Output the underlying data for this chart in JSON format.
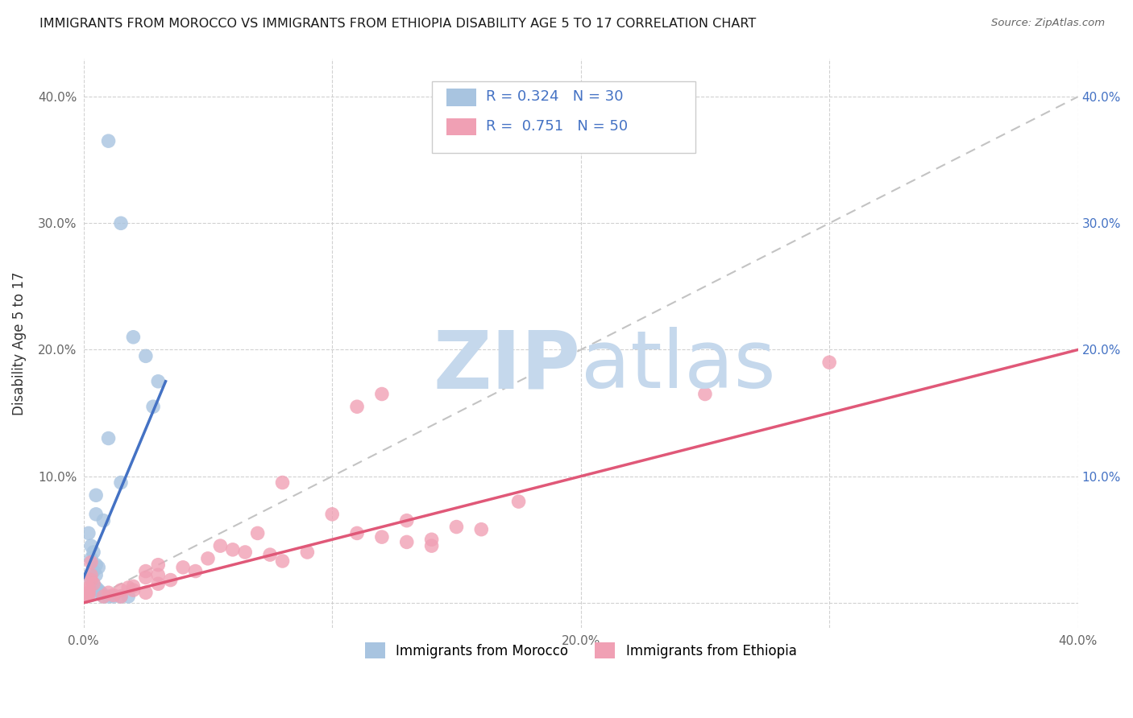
{
  "title": "IMMIGRANTS FROM MOROCCO VS IMMIGRANTS FROM ETHIOPIA DISABILITY AGE 5 TO 17 CORRELATION CHART",
  "source": "Source: ZipAtlas.com",
  "ylabel": "Disability Age 5 to 17",
  "xlim": [
    0.0,
    0.4
  ],
  "ylim": [
    -0.02,
    0.43
  ],
  "xticks": [
    0.0,
    0.1,
    0.2,
    0.3,
    0.4
  ],
  "yticks": [
    0.0,
    0.1,
    0.2,
    0.3,
    0.4
  ],
  "xticklabels": [
    "0.0%",
    "",
    "20.0%",
    "",
    "40.0%"
  ],
  "yticklabels": [
    "",
    "10.0%",
    "20.0%",
    "30.0%",
    "40.0%"
  ],
  "right_yticklabels": [
    "",
    "10.0%",
    "20.0%",
    "30.0%",
    "40.0%"
  ],
  "morocco_color": "#a8c4e0",
  "ethiopia_color": "#f0a0b4",
  "morocco_line_color": "#4472c4",
  "ethiopia_line_color": "#e05878",
  "morocco_R": 0.324,
  "morocco_N": 30,
  "ethiopia_R": 0.751,
  "ethiopia_N": 50,
  "watermark_zip_color": "#c5d8ec",
  "watermark_atlas_color": "#c5d8ec",
  "morocco_scatter": [
    [
      0.01,
      0.365
    ],
    [
      0.015,
      0.3
    ],
    [
      0.02,
      0.21
    ],
    [
      0.025,
      0.195
    ],
    [
      0.03,
      0.175
    ],
    [
      0.028,
      0.155
    ],
    [
      0.01,
      0.13
    ],
    [
      0.015,
      0.095
    ],
    [
      0.005,
      0.085
    ],
    [
      0.005,
      0.07
    ],
    [
      0.008,
      0.065
    ],
    [
      0.002,
      0.055
    ],
    [
      0.003,
      0.045
    ],
    [
      0.004,
      0.04
    ],
    [
      0.003,
      0.035
    ],
    [
      0.005,
      0.03
    ],
    [
      0.006,
      0.028
    ],
    [
      0.004,
      0.025
    ],
    [
      0.005,
      0.022
    ],
    [
      0.003,
      0.018
    ],
    [
      0.004,
      0.015
    ],
    [
      0.005,
      0.012
    ],
    [
      0.006,
      0.01
    ],
    [
      0.007,
      0.008
    ],
    [
      0.003,
      0.006
    ],
    [
      0.008,
      0.005
    ],
    [
      0.01,
      0.005
    ],
    [
      0.012,
      0.005
    ],
    [
      0.015,
      0.005
    ],
    [
      0.018,
      0.005
    ]
  ],
  "ethiopia_scatter": [
    [
      0.3,
      0.19
    ],
    [
      0.25,
      0.165
    ],
    [
      0.12,
      0.165
    ],
    [
      0.11,
      0.155
    ],
    [
      0.08,
      0.095
    ],
    [
      0.175,
      0.08
    ],
    [
      0.1,
      0.07
    ],
    [
      0.13,
      0.065
    ],
    [
      0.15,
      0.06
    ],
    [
      0.16,
      0.058
    ],
    [
      0.11,
      0.055
    ],
    [
      0.12,
      0.052
    ],
    [
      0.14,
      0.05
    ],
    [
      0.13,
      0.048
    ],
    [
      0.14,
      0.045
    ],
    [
      0.06,
      0.042
    ],
    [
      0.065,
      0.04
    ],
    [
      0.09,
      0.04
    ],
    [
      0.075,
      0.038
    ],
    [
      0.05,
      0.035
    ],
    [
      0.08,
      0.033
    ],
    [
      0.03,
      0.03
    ],
    [
      0.04,
      0.028
    ],
    [
      0.025,
      0.025
    ],
    [
      0.03,
      0.022
    ],
    [
      0.025,
      0.02
    ],
    [
      0.035,
      0.018
    ],
    [
      0.03,
      0.015
    ],
    [
      0.02,
      0.013
    ],
    [
      0.018,
      0.012
    ],
    [
      0.015,
      0.01
    ],
    [
      0.02,
      0.01
    ],
    [
      0.025,
      0.008
    ],
    [
      0.01,
      0.008
    ],
    [
      0.012,
      0.006
    ],
    [
      0.015,
      0.005
    ],
    [
      0.008,
      0.005
    ],
    [
      0.003,
      0.032
    ],
    [
      0.003,
      0.022
    ],
    [
      0.003,
      0.018
    ],
    [
      0.004,
      0.015
    ],
    [
      0.002,
      0.012
    ],
    [
      0.002,
      0.01
    ],
    [
      0.002,
      0.008
    ],
    [
      0.002,
      0.006
    ],
    [
      0.001,
      0.005
    ],
    [
      0.001,
      0.005
    ],
    [
      0.055,
      0.045
    ],
    [
      0.07,
      0.055
    ],
    [
      0.045,
      0.025
    ]
  ],
  "background_color": "#ffffff",
  "grid_color": "#cccccc"
}
